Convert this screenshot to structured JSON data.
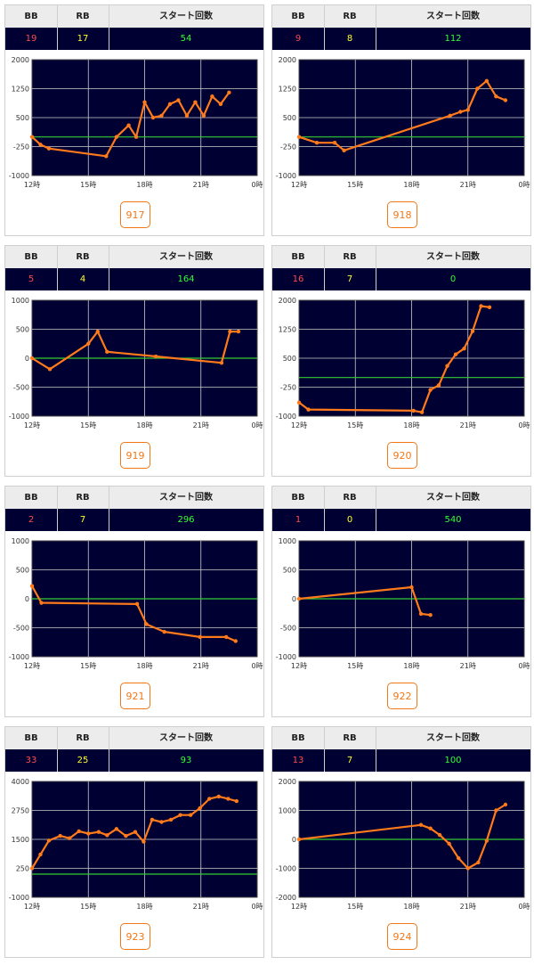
{
  "header": {
    "bb": "BB",
    "rb": "RB",
    "start": "スタート回数"
  },
  "colors": {
    "plot_bg": "#000033",
    "line": "#ff7a1a",
    "baseline": "#33cc33",
    "grid": "#cccccc"
  },
  "machines": [
    {
      "id": "917",
      "bb": "19",
      "rb": "17",
      "start": "54",
      "chart_data": {
        "type": "line",
        "xlim": [
          12,
          24
        ],
        "ylim": [
          -1000,
          2000
        ],
        "ytick_labels": [
          "2000",
          "1250",
          "500",
          "-250",
          "-1000"
        ],
        "xtick_labels": [
          "12時",
          "15時",
          "18時",
          "21時",
          "0時"
        ],
        "baseline": 0,
        "points": [
          [
            12.0,
            0
          ],
          [
            12.45,
            -200
          ],
          [
            12.9,
            -300
          ],
          [
            15.95,
            -500
          ],
          [
            16.5,
            0
          ],
          [
            17.15,
            300
          ],
          [
            17.55,
            0
          ],
          [
            18.0,
            900
          ],
          [
            18.45,
            500
          ],
          [
            18.9,
            550
          ],
          [
            19.35,
            850
          ],
          [
            19.8,
            950
          ],
          [
            20.25,
            550
          ],
          [
            20.7,
            900
          ],
          [
            21.15,
            550
          ],
          [
            21.6,
            1050
          ],
          [
            22.05,
            850
          ],
          [
            22.5,
            1150
          ]
        ]
      }
    },
    {
      "id": "918",
      "bb": "9",
      "rb": "8",
      "start": "112",
      "chart_data": {
        "type": "line",
        "xlim": [
          12,
          24
        ],
        "ylim": [
          -1000,
          2000
        ],
        "ytick_labels": [
          "2000",
          "1250",
          "500",
          "-250",
          "-1000"
        ],
        "xtick_labels": [
          "12時",
          "15時",
          "18時",
          "21時",
          "0時"
        ],
        "baseline": 0,
        "points": [
          [
            12.0,
            0
          ],
          [
            12.95,
            -150
          ],
          [
            13.9,
            -150
          ],
          [
            14.4,
            -350
          ],
          [
            20.05,
            550
          ],
          [
            20.6,
            650
          ],
          [
            21.0,
            700
          ],
          [
            21.5,
            1250
          ],
          [
            22.0,
            1450
          ],
          [
            22.5,
            1050
          ],
          [
            23.0,
            950
          ]
        ]
      }
    },
    {
      "id": "919",
      "bb": "5",
      "rb": "4",
      "start": "164",
      "chart_data": {
        "type": "line",
        "xlim": [
          12,
          24
        ],
        "ylim": [
          -1000,
          1000
        ],
        "ytick_labels": [
          "1000",
          "500",
          "0",
          "-500",
          "-1000"
        ],
        "xtick_labels": [
          "12時",
          "15時",
          "18時",
          "21時",
          "0時"
        ],
        "baseline": 0,
        "points": [
          [
            12.0,
            0
          ],
          [
            12.95,
            -190
          ],
          [
            15.0,
            250
          ],
          [
            15.5,
            460
          ],
          [
            16.0,
            110
          ],
          [
            18.6,
            30
          ],
          [
            22.1,
            -80
          ],
          [
            22.55,
            460
          ],
          [
            23.0,
            460
          ]
        ]
      }
    },
    {
      "id": "920",
      "bb": "16",
      "rb": "7",
      "start": "0",
      "chart_data": {
        "type": "line",
        "xlim": [
          12,
          24
        ],
        "ylim": [
          -1000,
          2000
        ],
        "ytick_labels": [
          "2000",
          "1250",
          "500",
          "-250",
          "-1000"
        ],
        "xtick_labels": [
          "12時",
          "15時",
          "18時",
          "21時",
          "0時"
        ],
        "baseline": 0,
        "points": [
          [
            12.0,
            -650
          ],
          [
            12.5,
            -830
          ],
          [
            18.1,
            -860
          ],
          [
            18.55,
            -900
          ],
          [
            19.0,
            -320
          ],
          [
            19.45,
            -200
          ],
          [
            19.9,
            300
          ],
          [
            20.35,
            600
          ],
          [
            20.8,
            750
          ],
          [
            21.25,
            1200
          ],
          [
            21.7,
            1850
          ],
          [
            22.15,
            1820
          ]
        ]
      }
    },
    {
      "id": "921",
      "bb": "2",
      "rb": "7",
      "start": "296",
      "chart_data": {
        "type": "line",
        "xlim": [
          12,
          24
        ],
        "ylim": [
          -1000,
          1000
        ],
        "ytick_labels": [
          "1000",
          "500",
          "0",
          "-500",
          "-1000"
        ],
        "xtick_labels": [
          "12時",
          "15時",
          "18時",
          "21時",
          "0時"
        ],
        "baseline": 0,
        "points": [
          [
            12.0,
            220
          ],
          [
            12.5,
            -70
          ],
          [
            17.6,
            -90
          ],
          [
            18.1,
            -440
          ],
          [
            19.05,
            -570
          ],
          [
            20.95,
            -660
          ],
          [
            22.35,
            -660
          ],
          [
            22.85,
            -730
          ]
        ]
      }
    },
    {
      "id": "922",
      "bb": "1",
      "rb": "0",
      "start": "540",
      "chart_data": {
        "type": "line",
        "xlim": [
          12,
          24
        ],
        "ylim": [
          -1000,
          1000
        ],
        "ytick_labels": [
          "1000",
          "500",
          "0",
          "-500",
          "-1000"
        ],
        "xtick_labels": [
          "12時",
          "15時",
          "18時",
          "21時",
          "0時"
        ],
        "baseline": 0,
        "points": [
          [
            12.0,
            0
          ],
          [
            18.0,
            200
          ],
          [
            18.5,
            -260
          ],
          [
            19.0,
            -280
          ]
        ]
      }
    },
    {
      "id": "923",
      "bb": "33",
      "rb": "25",
      "start": "93",
      "chart_data": {
        "type": "line",
        "xlim": [
          12,
          24
        ],
        "ylim": [
          -1000,
          4000
        ],
        "ytick_labels": [
          "4000",
          "2750",
          "1500",
          "250",
          "-1000"
        ],
        "xtick_labels": [
          "12時",
          "15時",
          "18時",
          "21時",
          "0時"
        ],
        "baseline": 0,
        "points": [
          [
            12.0,
            250
          ],
          [
            12.45,
            850
          ],
          [
            12.9,
            1450
          ],
          [
            13.5,
            1650
          ],
          [
            14.0,
            1550
          ],
          [
            14.5,
            1850
          ],
          [
            15.0,
            1750
          ],
          [
            15.55,
            1820
          ],
          [
            16.0,
            1680
          ],
          [
            16.5,
            1950
          ],
          [
            17.0,
            1650
          ],
          [
            17.5,
            1820
          ],
          [
            17.95,
            1400
          ],
          [
            18.4,
            2350
          ],
          [
            18.9,
            2250
          ],
          [
            19.4,
            2350
          ],
          [
            19.9,
            2550
          ],
          [
            20.45,
            2550
          ],
          [
            20.95,
            2850
          ],
          [
            21.45,
            3250
          ],
          [
            21.95,
            3350
          ],
          [
            22.45,
            3250
          ],
          [
            22.9,
            3150
          ]
        ]
      }
    },
    {
      "id": "924",
      "bb": "13",
      "rb": "7",
      "start": "100",
      "chart_data": {
        "type": "line",
        "xlim": [
          12,
          24
        ],
        "ylim": [
          -2000,
          2000
        ],
        "ytick_labels": [
          "2000",
          "1000",
          "0",
          "-1000",
          "-2000"
        ],
        "xtick_labels": [
          "12時",
          "15時",
          "18時",
          "21時",
          "0時"
        ],
        "baseline": 0,
        "points": [
          [
            12.0,
            0
          ],
          [
            18.5,
            500
          ],
          [
            19.0,
            380
          ],
          [
            19.5,
            150
          ],
          [
            20.0,
            -150
          ],
          [
            20.5,
            -650
          ],
          [
            21.0,
            -1000
          ],
          [
            21.55,
            -800
          ],
          [
            22.0,
            -50
          ],
          [
            22.5,
            1000
          ],
          [
            23.0,
            1200
          ]
        ]
      }
    }
  ]
}
